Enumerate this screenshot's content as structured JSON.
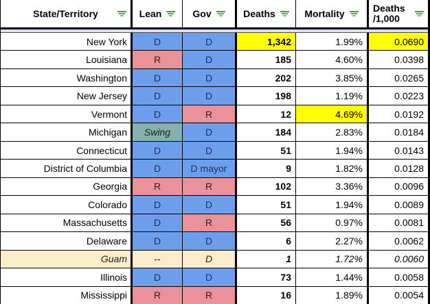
{
  "colors": {
    "blue": "#6d9eeb",
    "red": "#ea9199",
    "swing": "#87b0aa",
    "cream": "#fdeecb",
    "highlight_yellow": "#ffff00",
    "filter_green": "#3aa245",
    "freeze_gap_gray": "#dde3ee"
  },
  "header": {
    "cols": [
      {
        "label": "State/Territory"
      },
      {
        "label": "Lean"
      },
      {
        "label": "Gov"
      },
      {
        "label": "Deaths"
      },
      {
        "label": "Mortality"
      },
      {
        "label": "Deaths",
        "label2": "/1,000"
      }
    ]
  },
  "table": {
    "rows": [
      {
        "state": "New York",
        "lean": "D",
        "lean_bg": "blue",
        "gov": "D",
        "gov_bg": "blue",
        "deaths": "1,342",
        "mortality": "1.99%",
        "per1000": "0.0690",
        "deaths_hl": true,
        "per1000_hl": true
      },
      {
        "state": "Louisiana",
        "lean": "R",
        "lean_bg": "red",
        "gov": "D",
        "gov_bg": "blue",
        "deaths": "185",
        "mortality": "4.60%",
        "per1000": "0.0398"
      },
      {
        "state": "Washington",
        "lean": "D",
        "lean_bg": "blue",
        "gov": "D",
        "gov_bg": "blue",
        "deaths": "202",
        "mortality": "3.85%",
        "per1000": "0.0265"
      },
      {
        "state": "New Jersey",
        "lean": "D",
        "lean_bg": "blue",
        "gov": "D",
        "gov_bg": "blue",
        "deaths": "198",
        "mortality": "1.19%",
        "per1000": "0.0223"
      },
      {
        "state": "Vermont",
        "lean": "D",
        "lean_bg": "blue",
        "gov": "R",
        "gov_bg": "red",
        "deaths": "12",
        "mortality": "4.69%",
        "per1000": "0.0192",
        "mortality_hl": true
      },
      {
        "state": "Michigan",
        "lean": "Swing",
        "lean_bg": "swing",
        "gov": "D",
        "gov_bg": "blue",
        "deaths": "184",
        "mortality": "2.83%",
        "per1000": "0.0184"
      },
      {
        "state": "Connecticut",
        "lean": "D",
        "lean_bg": "blue",
        "gov": "D",
        "gov_bg": "blue",
        "deaths": "51",
        "mortality": "1.94%",
        "per1000": "0.0143"
      },
      {
        "state": "District of Columbia",
        "lean": "D",
        "lean_bg": "blue",
        "gov": "D mayor",
        "gov_bg": "blue",
        "deaths": "9",
        "mortality": "1.82%",
        "per1000": "0.0128"
      },
      {
        "state": "Georgia",
        "lean": "R",
        "lean_bg": "red",
        "gov": "R",
        "gov_bg": "red",
        "deaths": "102",
        "mortality": "3.36%",
        "per1000": "0.0096"
      },
      {
        "state": "Colorado",
        "lean": "D",
        "lean_bg": "blue",
        "gov": "D",
        "gov_bg": "blue",
        "deaths": "51",
        "mortality": "1.94%",
        "per1000": "0.0089"
      },
      {
        "state": "Massachusetts",
        "lean": "D",
        "lean_bg": "blue",
        "gov": "R",
        "gov_bg": "red",
        "deaths": "56",
        "mortality": "0.97%",
        "per1000": "0.0081"
      },
      {
        "state": "Delaware",
        "lean": "D",
        "lean_bg": "blue",
        "gov": "D",
        "gov_bg": "blue",
        "deaths": "6",
        "mortality": "2.27%",
        "per1000": "0.0062"
      },
      {
        "state": "Guam",
        "state_cream": true,
        "state_italic": true,
        "lean": "--",
        "lean_bg": "cream",
        "gov": "D",
        "gov_bg": "cream",
        "gov_italic": true,
        "deaths": "1",
        "mortality": "1.72%",
        "per1000": "0.0060",
        "italic_nums": true
      },
      {
        "state": "Illinois",
        "lean": "D",
        "lean_bg": "blue",
        "gov": "D",
        "gov_bg": "blue",
        "deaths": "73",
        "mortality": "1.44%",
        "per1000": "0.0058"
      },
      {
        "state": "Mississippi",
        "lean": "R",
        "lean_bg": "red",
        "gov": "R",
        "gov_bg": "red",
        "deaths": "16",
        "mortality": "1.89%",
        "per1000": "0.0054"
      }
    ]
  }
}
